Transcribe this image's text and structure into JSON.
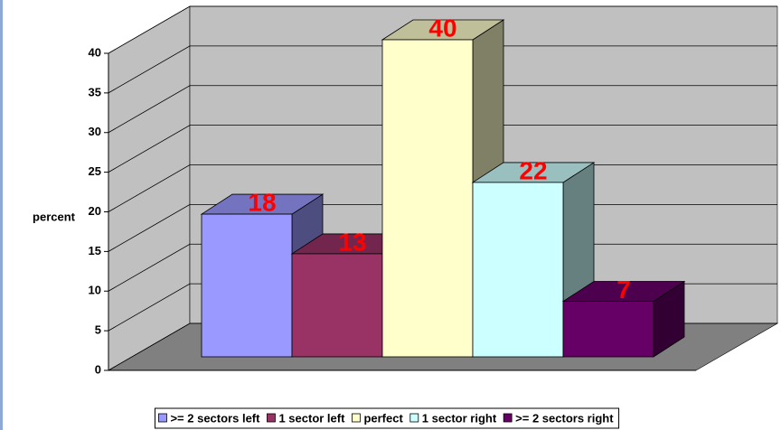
{
  "chart_data": {
    "type": "bar3d",
    "y_label": "percent",
    "ylim": [
      0,
      40
    ],
    "yticks": [
      0,
      5,
      10,
      15,
      20,
      25,
      30,
      35,
      40
    ],
    "grid": true,
    "series": [
      {
        "name": ">= 2 sectors left",
        "color": "#9999FF",
        "values": [
          18
        ]
      },
      {
        "name": "1 sector left",
        "color": "#993366",
        "values": [
          13
        ]
      },
      {
        "name": "perfect",
        "color": "#FFFFCC",
        "values": [
          40
        ]
      },
      {
        "name": "1 sector right",
        "color": "#CCFFFF",
        "values": [
          22
        ]
      },
      {
        "name": ">= 2 sectors right",
        "color": "#660066",
        "values": [
          7
        ]
      }
    ],
    "legend": "bottom"
  }
}
